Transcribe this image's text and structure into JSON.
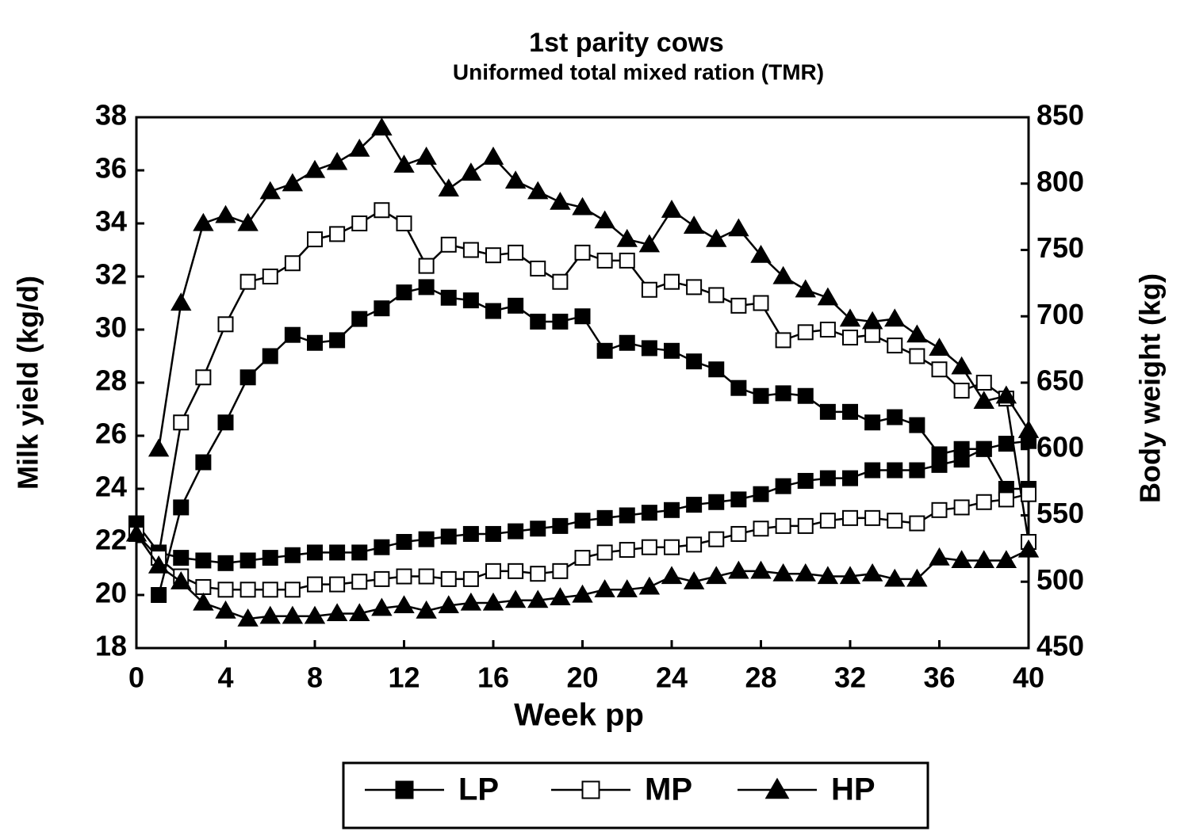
{
  "chart_data": {
    "type": "line",
    "title": "1st parity cows",
    "subtitle": "Uniformed total mixed ration (TMR)",
    "x_label": "Week pp",
    "y_label": "Milk yield (kg/d)",
    "y2_label": "Body weight (kg)",
    "x": [
      0,
      1,
      2,
      3,
      4,
      5,
      6,
      7,
      8,
      9,
      10,
      11,
      12,
      13,
      14,
      15,
      16,
      17,
      18,
      19,
      20,
      21,
      22,
      23,
      24,
      25,
      26,
      27,
      28,
      29,
      30,
      31,
      32,
      33,
      34,
      35,
      36,
      37,
      38,
      39,
      40
    ],
    "xlim": [
      0,
      40
    ],
    "xticks": [
      0,
      4,
      8,
      12,
      16,
      20,
      24,
      28,
      32,
      36,
      40
    ],
    "ylim": [
      18,
      38
    ],
    "yticks": [
      18,
      20,
      22,
      24,
      26,
      28,
      30,
      32,
      34,
      36,
      38
    ],
    "y2lim": [
      450,
      850
    ],
    "y2ticks": [
      450,
      500,
      550,
      600,
      650,
      700,
      750,
      800,
      850
    ],
    "series": [
      {
        "name": "LP",
        "color": "#000000",
        "marker": "square-filled",
        "values": [
          null,
          20.0,
          23.3,
          25.0,
          26.5,
          28.2,
          29.0,
          29.8,
          29.5,
          29.6,
          30.4,
          30.8,
          31.4,
          31.6,
          31.2,
          31.1,
          30.7,
          30.9,
          30.3,
          30.3,
          30.5,
          29.2,
          29.5,
          29.3,
          29.2,
          28.8,
          28.5,
          27.8,
          27.5,
          27.6,
          27.5,
          26.9,
          26.9,
          26.5,
          26.7,
          26.4,
          25.3,
          25.5,
          25.5,
          24.0,
          24.0
        ]
      },
      {
        "name": "MP",
        "color": "#000000",
        "marker": "square-open",
        "values": [
          null,
          21.5,
          26.5,
          28.2,
          30.2,
          31.8,
          32.0,
          32.5,
          33.4,
          33.6,
          34.0,
          34.5,
          34.0,
          32.4,
          33.2,
          33.0,
          32.8,
          32.9,
          32.3,
          31.8,
          32.9,
          32.6,
          32.6,
          31.5,
          31.8,
          31.6,
          31.3,
          30.9,
          31.0,
          29.6,
          29.9,
          30.0,
          29.7,
          29.8,
          29.4,
          29.0,
          28.5,
          27.7,
          28.0,
          27.4,
          22.0
        ]
      },
      {
        "name": "HP",
        "color": "#000000",
        "marker": "triangle-filled",
        "values": [
          null,
          25.5,
          31.0,
          34.0,
          34.3,
          34.0,
          35.2,
          35.5,
          36.0,
          36.3,
          36.8,
          37.6,
          36.2,
          36.5,
          35.3,
          35.9,
          36.5,
          35.6,
          35.2,
          34.8,
          34.6,
          34.1,
          33.4,
          33.2,
          34.5,
          33.9,
          33.4,
          33.8,
          32.8,
          32.0,
          31.5,
          31.2,
          30.4,
          30.3,
          30.4,
          29.8,
          29.3,
          28.6,
          27.3,
          27.5,
          26.2
        ]
      },
      {
        "name": "LP",
        "color": "#000000",
        "marker": "square-filled",
        "axis": "y2",
        "values": [
          544,
          522,
          518,
          516,
          514,
          516,
          518,
          520,
          522,
          522,
          522,
          526,
          530,
          532,
          534,
          536,
          536,
          538,
          540,
          542,
          546,
          548,
          550,
          552,
          554,
          558,
          560,
          562,
          566,
          572,
          576,
          578,
          578,
          584,
          584,
          584,
          588,
          592,
          600,
          604,
          606
        ]
      },
      {
        "name": "MP",
        "color": "#000000",
        "marker": "square-open",
        "axis": "y2",
        "values": [
          536,
          518,
          504,
          496,
          494,
          494,
          494,
          494,
          498,
          498,
          500,
          502,
          504,
          504,
          502,
          502,
          508,
          508,
          506,
          508,
          518,
          522,
          524,
          526,
          526,
          528,
          532,
          536,
          540,
          542,
          542,
          546,
          548,
          548,
          546,
          544,
          554,
          556,
          560,
          562,
          566
        ]
      },
      {
        "name": "HP",
        "color": "#000000",
        "marker": "triangle-filled",
        "axis": "y2",
        "values": [
          536,
          512,
          500,
          484,
          478,
          472,
          474,
          474,
          474,
          476,
          476,
          480,
          482,
          478,
          482,
          484,
          484,
          486,
          486,
          488,
          490,
          494,
          494,
          496,
          504,
          500,
          504,
          508,
          508,
          506,
          506,
          504,
          504,
          506,
          502,
          502,
          518,
          516,
          516,
          516,
          524
        ]
      }
    ]
  }
}
